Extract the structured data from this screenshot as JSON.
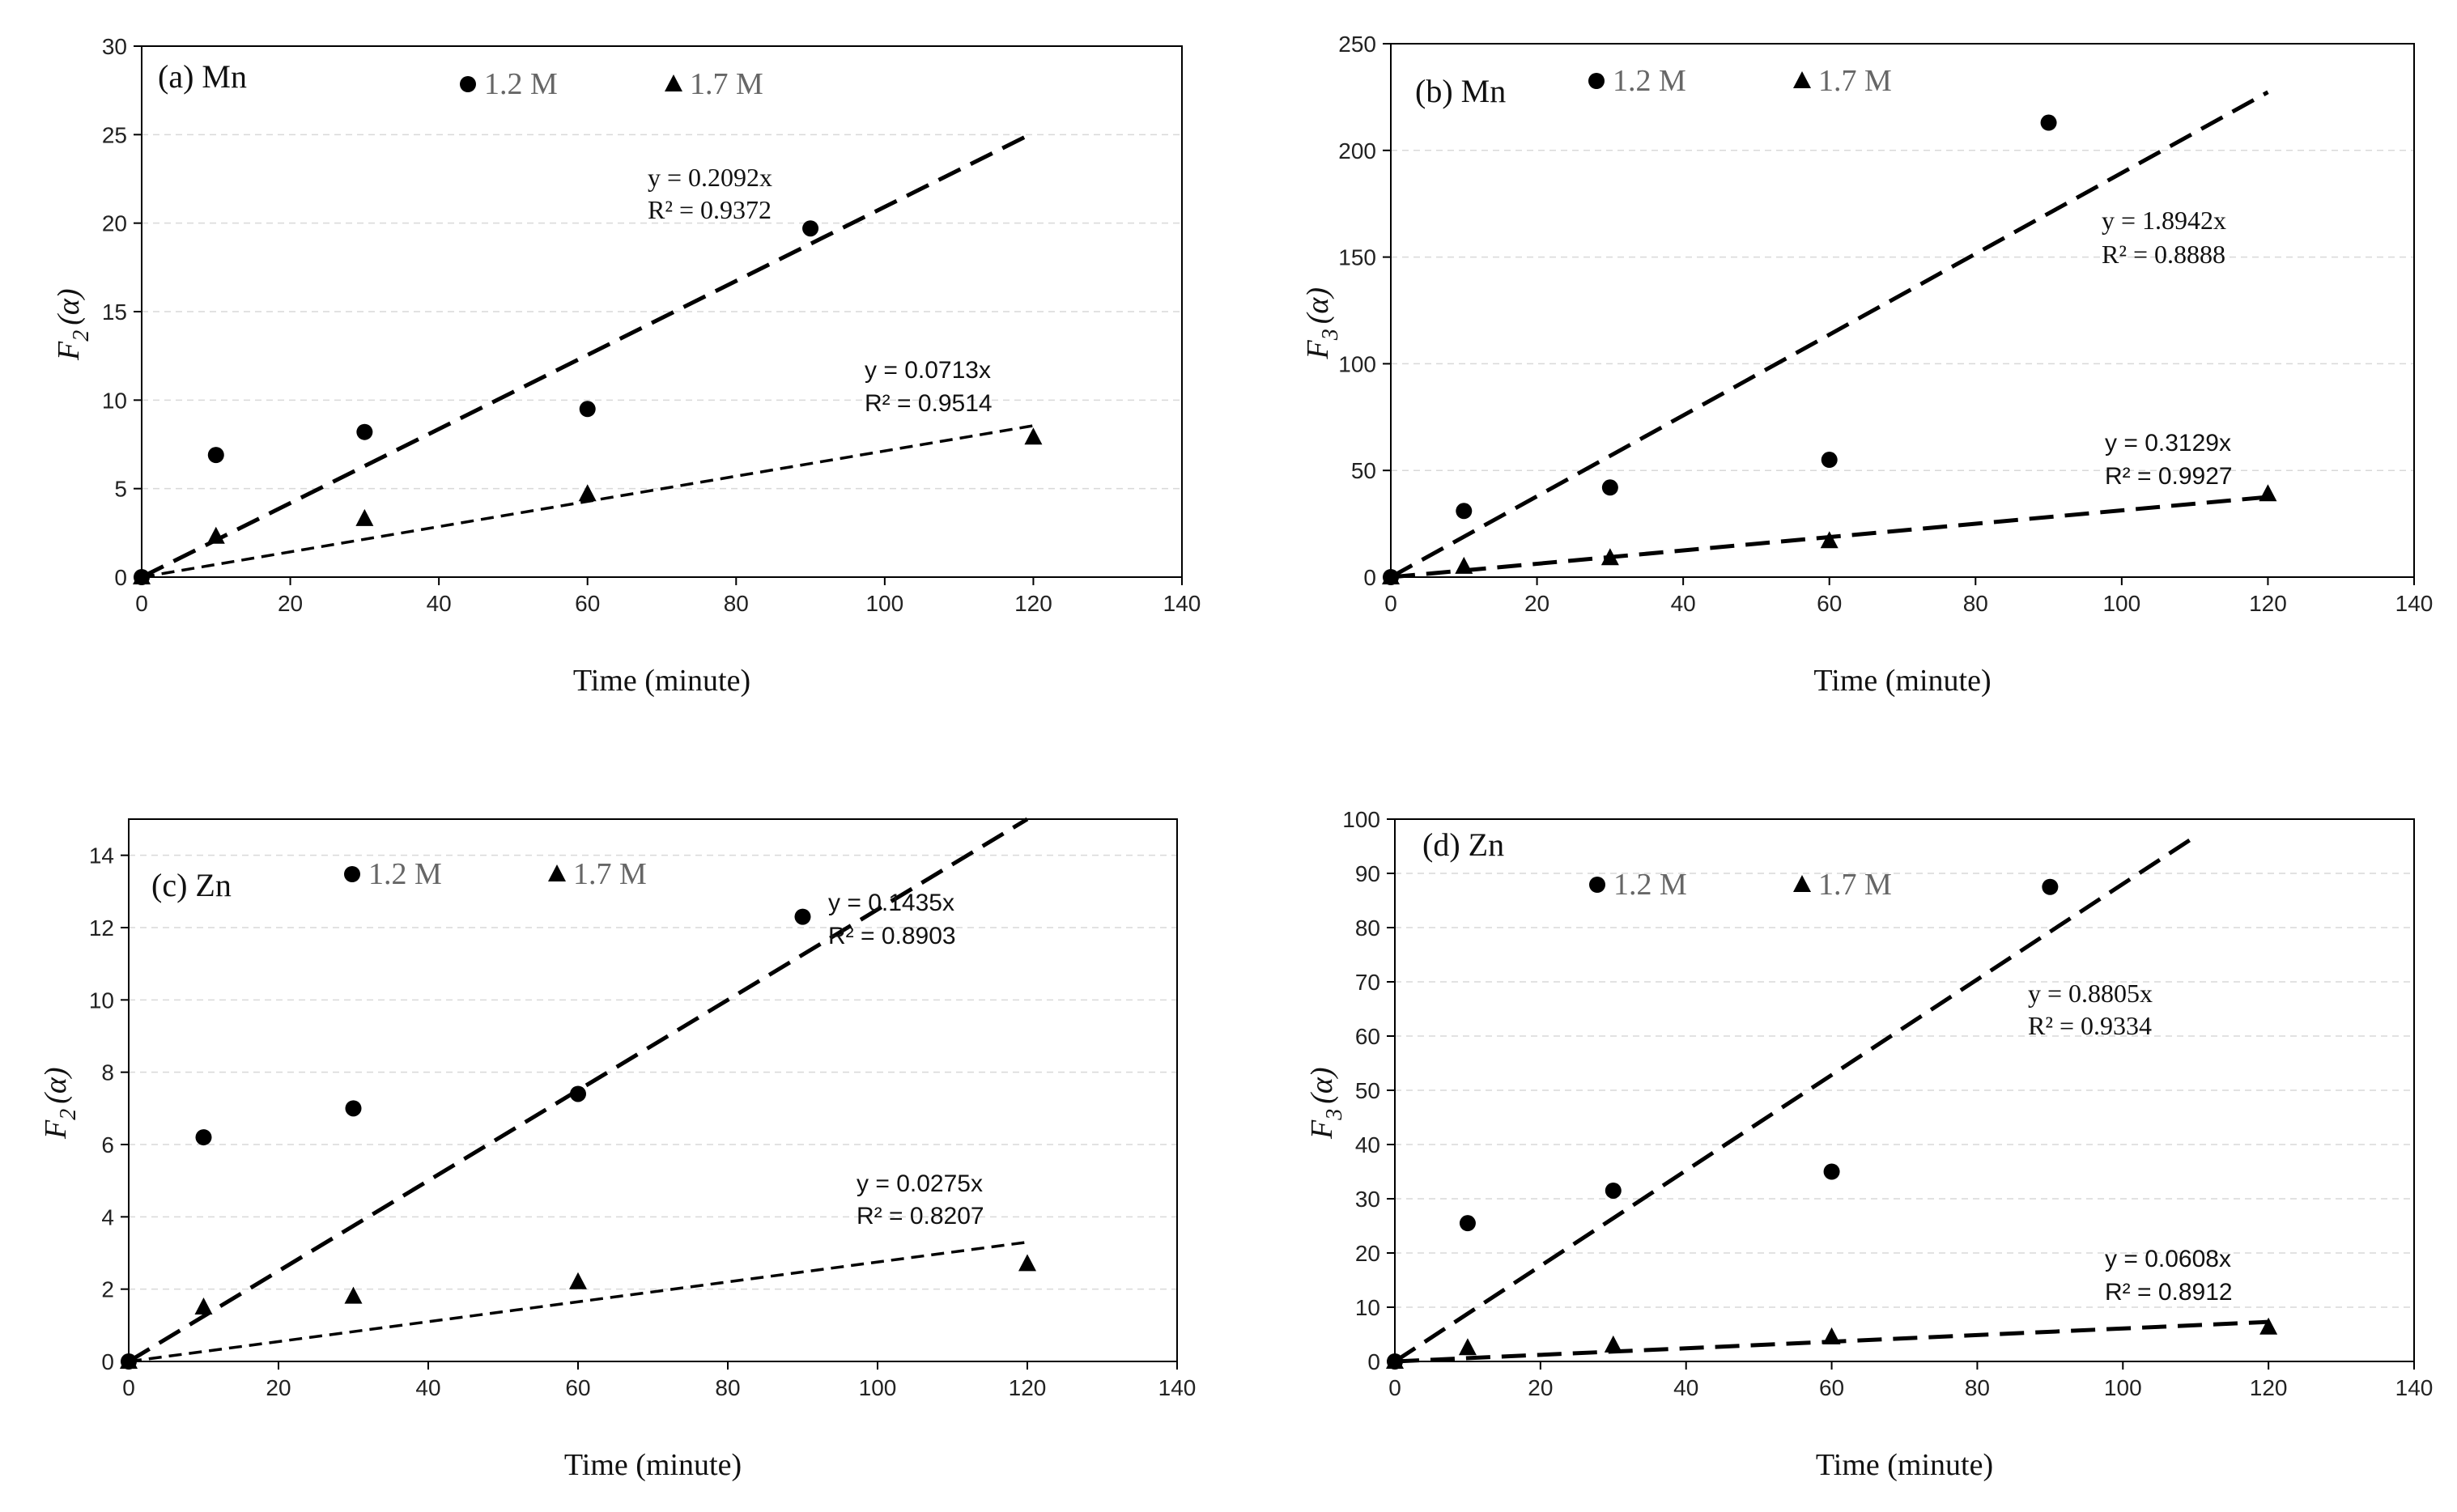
{
  "chart_data": [
    {
      "type": "scatter",
      "panel": "a",
      "title": "(a) Mn",
      "xlabel": "Time (minute)",
      "ylabel_main": "F",
      "ylabel_sub": "2",
      "ylabel_arg": "(α)",
      "xlim": [
        0,
        140
      ],
      "ylim": [
        0,
        30
      ],
      "xticks": [
        0,
        20,
        40,
        60,
        80,
        100,
        120,
        140
      ],
      "yticks": [
        0,
        5,
        10,
        15,
        20,
        25,
        30
      ],
      "series": [
        {
          "name": "1.2 M",
          "marker": "circle",
          "x": [
            0,
            10,
            30,
            60,
            90
          ],
          "y": [
            0,
            6.9,
            8.2,
            9.5,
            19.7
          ],
          "fit_slope": 0.2092,
          "fit_x_end": 120,
          "dash": "long",
          "eq": "y = 0.2092x",
          "r2": "R² = 0.9372"
        },
        {
          "name": "1.7 M",
          "marker": "triangle",
          "x": [
            0,
            10,
            30,
            60,
            120
          ],
          "y": [
            0,
            2.3,
            3.3,
            4.7,
            7.9
          ],
          "fit_slope": 0.0713,
          "fit_x_end": 120,
          "dash": "short",
          "eq": "y = 0.0713x",
          "r2": "R² = 0.9514"
        }
      ]
    },
    {
      "type": "scatter",
      "panel": "b",
      "title": "(b) Mn",
      "xlabel": "Time (minute)",
      "ylabel_main": "F",
      "ylabel_sub": "3",
      "ylabel_arg": "(α)",
      "xlim": [
        0,
        140
      ],
      "ylim": [
        0,
        250
      ],
      "xticks": [
        0,
        20,
        40,
        60,
        80,
        100,
        120,
        140
      ],
      "yticks": [
        0,
        50,
        100,
        150,
        200,
        250
      ],
      "series": [
        {
          "name": "1.2 M",
          "marker": "circle",
          "x": [
            0,
            10,
            30,
            60,
            90
          ],
          "y": [
            0,
            31,
            42,
            55,
            213
          ],
          "fit_slope": 1.8942,
          "fit_x_end": 120,
          "dash": "long",
          "eq": "y = 1.8942x",
          "r2": "R² = 0.8888"
        },
        {
          "name": "1.7 M",
          "marker": "triangle",
          "x": [
            0,
            10,
            30,
            60,
            120
          ],
          "y": [
            0,
            5,
            9,
            17,
            39
          ],
          "fit_slope": 0.3129,
          "fit_x_end": 120,
          "dash": "long",
          "eq": "y = 0.3129x",
          "r2": "R² = 0.9927"
        }
      ]
    },
    {
      "type": "scatter",
      "panel": "c",
      "title": "(c) Zn",
      "xlabel": "Time (minute)",
      "ylabel_main": "F",
      "ylabel_sub": "2",
      "ylabel_arg": "(α)",
      "xlim": [
        0,
        140
      ],
      "ylim": [
        0,
        15
      ],
      "xticks": [
        0,
        20,
        40,
        60,
        80,
        100,
        120,
        140
      ],
      "yticks": [
        0,
        2,
        4,
        6,
        8,
        10,
        12,
        14
      ],
      "series": [
        {
          "name": "1.2 M",
          "marker": "circle",
          "x": [
            0,
            10,
            30,
            60,
            90
          ],
          "y": [
            0,
            6.2,
            7.0,
            7.4,
            12.3
          ],
          "fit_slope": 0.1435,
          "fit_x_end": 120,
          "dash": "long",
          "eq": "y = 0.1435x",
          "r2": "R² = 0.8903"
        },
        {
          "name": "1.7 M",
          "marker": "triangle",
          "x": [
            0,
            10,
            30,
            60,
            120
          ],
          "y": [
            0,
            1.5,
            1.8,
            2.2,
            2.7
          ],
          "fit_slope": 0.0275,
          "fit_x_end": 120,
          "dash": "short",
          "eq": "y = 0.0275x",
          "r2": "R² = 0.8207"
        }
      ]
    },
    {
      "type": "scatter",
      "panel": "d",
      "title": "(d) Zn",
      "xlabel": "Time (minute)",
      "ylabel_main": "F",
      "ylabel_sub": "3",
      "ylabel_arg": "(α)",
      "xlim": [
        0,
        140
      ],
      "ylim": [
        0,
        100
      ],
      "xticks": [
        0,
        20,
        40,
        60,
        80,
        100,
        120,
        140
      ],
      "yticks": [
        0,
        10,
        20,
        30,
        40,
        50,
        60,
        70,
        80,
        90,
        100
      ],
      "series": [
        {
          "name": "1.2 M",
          "marker": "circle",
          "x": [
            0,
            10,
            30,
            60,
            90
          ],
          "y": [
            0,
            25.5,
            31.5,
            35,
            87.5
          ],
          "fit_slope": 0.8805,
          "fit_x_end": 110,
          "dash": "long",
          "eq": "y = 0.8805x",
          "r2": "R² = 0.9334"
        },
        {
          "name": "1.7 M",
          "marker": "triangle",
          "x": [
            0,
            10,
            30,
            60,
            120
          ],
          "y": [
            0,
            2.5,
            3,
            4.5,
            6.3
          ],
          "fit_slope": 0.0608,
          "fit_x_end": 120,
          "dash": "long",
          "eq": "y = 0.0608x",
          "r2": "R² = 0.8912"
        }
      ]
    }
  ]
}
